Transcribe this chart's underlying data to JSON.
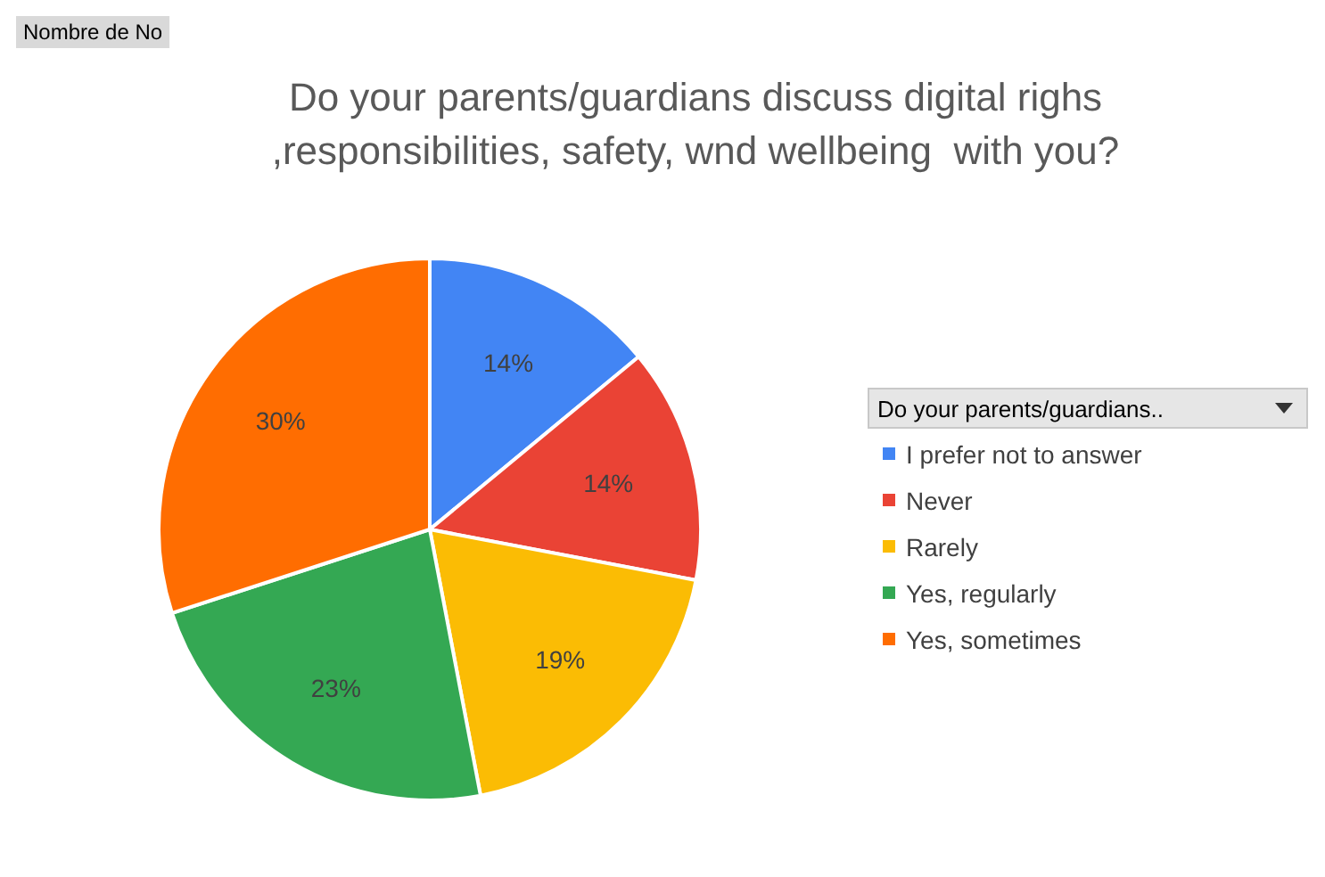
{
  "chart_data": {
    "type": "pie",
    "title": "Do your parents/guardians discuss digital righs ,responsibilities, safety, wnd wellbeing  with you?",
    "categories": [
      "I prefer not to answer",
      "Never",
      "Rarely",
      "Yes, regularly",
      "Yes, sometimes"
    ],
    "values": [
      14,
      14,
      19,
      23,
      30
    ],
    "colors": [
      "#4285f4",
      "#ea4335",
      "#fbbc04",
      "#34a853",
      "#ff6d01"
    ],
    "value_labels": [
      "14%",
      "14%",
      "19%",
      "23%",
      "30%"
    ],
    "legend": "right",
    "legend_title": "Do your parents/guardians..",
    "annotations": [
      "Nombre de No"
    ]
  }
}
